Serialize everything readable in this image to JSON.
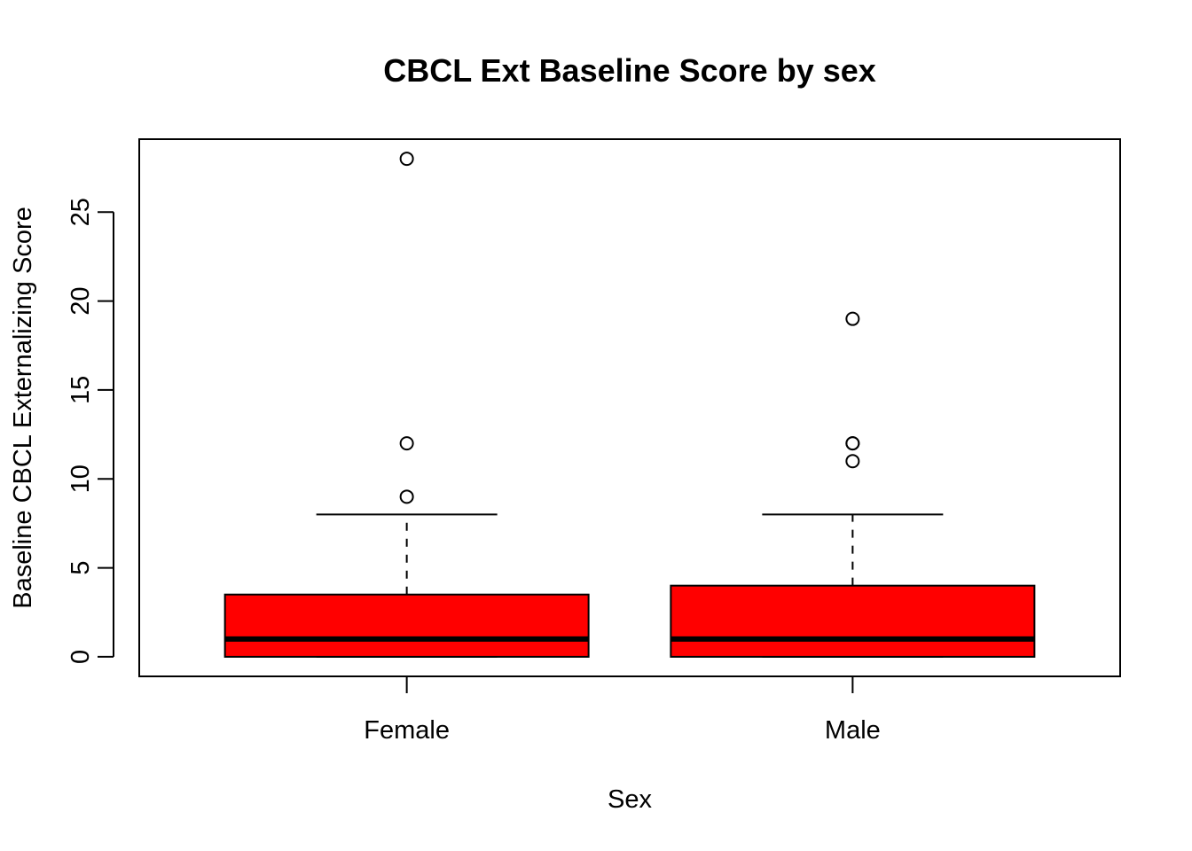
{
  "chart_data": {
    "type": "boxplot",
    "title": "CBCL Ext Baseline Score by sex",
    "xlabel": "Sex",
    "ylabel": "Baseline CBCL Externalizing Score",
    "categories": [
      "Female",
      "Male"
    ],
    "ylim": [
      -1.1,
      29.1
    ],
    "yticks": [
      0,
      5,
      10,
      15,
      20,
      25
    ],
    "ytick_labels": [
      "0",
      "5",
      "10",
      "15",
      "20",
      "25"
    ],
    "grid": false,
    "legend": "none",
    "box_color": "#ff0000",
    "boxes": [
      {
        "category": "Female",
        "min": 0,
        "q1": 0,
        "median": 1,
        "q3": 3.5,
        "max": 8,
        "outliers": [
          9,
          12,
          28
        ]
      },
      {
        "category": "Male",
        "min": 0,
        "q1": 0,
        "median": 1,
        "q3": 4,
        "max": 8,
        "outliers": [
          11,
          12,
          12,
          19
        ]
      }
    ]
  }
}
